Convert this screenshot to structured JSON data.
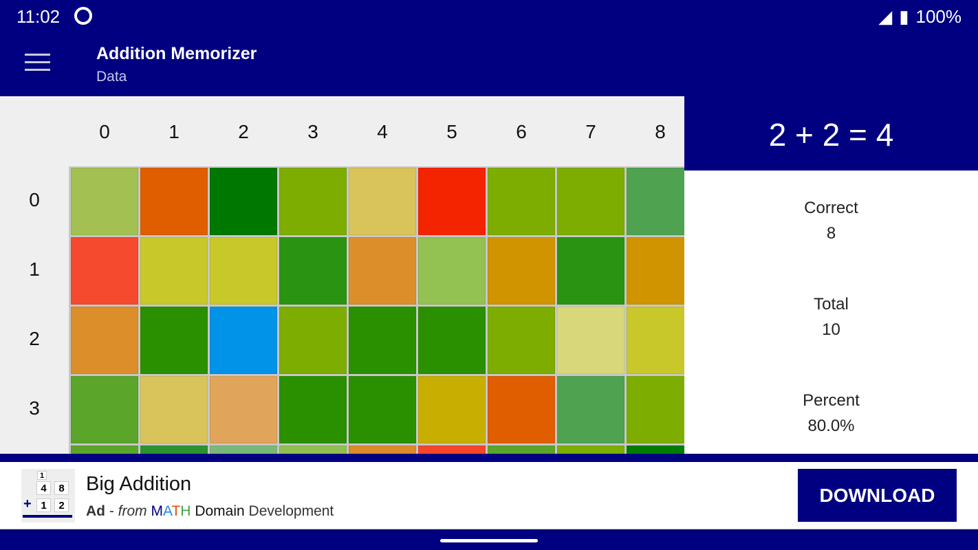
{
  "status": {
    "time": "11:02",
    "battery": "100%"
  },
  "app": {
    "title": "Addition Memorizer",
    "subtitle": "Data"
  },
  "grid": {
    "columns": [
      "0",
      "1",
      "2",
      "3",
      "4",
      "5",
      "6",
      "7",
      "8"
    ],
    "rows": [
      "0",
      "1",
      "2",
      "3",
      ""
    ],
    "colors": [
      [
        "#a3c152",
        "#e05e00",
        "#007800",
        "#7dad00",
        "#d8c45a",
        "#f52400",
        "#7dad00",
        "#7dad00",
        "#4fa350"
      ],
      [
        "#f54a2e",
        "#c8c82a",
        "#c8c82a",
        "#2a9312",
        "#dc8e2a",
        "#93c152",
        "#d09400",
        "#2a9312",
        "#d09400"
      ],
      [
        "#dc8e2a",
        "#2a9000",
        "#0093e8",
        "#7dad00",
        "#2a9000",
        "#2a9000",
        "#7dad00",
        "#d8d87a",
        "#c8c82a"
      ],
      [
        "#5aa52a",
        "#d8c45a",
        "#e0a55a",
        "#2a9000",
        "#2a9000",
        "#c8ae00",
        "#e05e00",
        "#4fa350",
        "#7dad00"
      ],
      [
        "#5aa52a",
        "#2a9330",
        "#7ab87a",
        "#8fbf4f",
        "#dc8a2a",
        "#f5452a",
        "#5aa52a",
        "#7dad00",
        "#007d00"
      ]
    ]
  },
  "panel": {
    "equation": "2 + 2 = 4",
    "correct_label": "Correct",
    "correct": "8",
    "total_label": "Total",
    "total": "10",
    "percent_label": "Percent",
    "percent": "80.0%"
  },
  "ad": {
    "title": "Big Addition",
    "ad_label": "Ad",
    "from": "from",
    "brand": [
      "M",
      "A",
      "T",
      "H"
    ],
    "brand_colors": [
      "#000080",
      "#1e88e5",
      "#e65100",
      "#43a047"
    ],
    "domain": "Domain",
    "development": "Development",
    "button": "DOWNLOAD",
    "icon_digits": [
      "1",
      "4",
      "8",
      "1",
      "2"
    ]
  }
}
